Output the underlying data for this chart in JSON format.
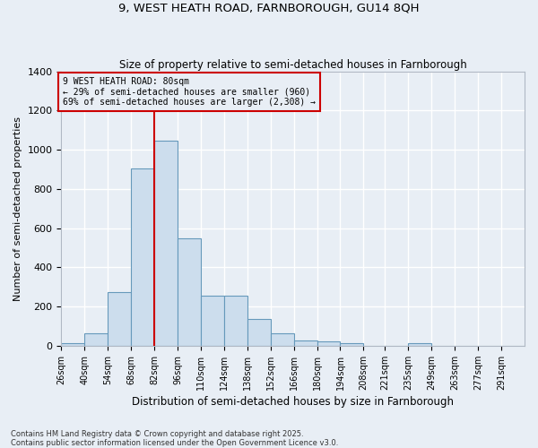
{
  "title1": "9, WEST HEATH ROAD, FARNBOROUGH, GU14 8QH",
  "title2": "Size of property relative to semi-detached houses in Farnborough",
  "xlabel": "Distribution of semi-detached houses by size in Farnborough",
  "ylabel": "Number of semi-detached properties",
  "annotation_title": "9 WEST HEATH ROAD: 80sqm",
  "annotation_line1": "← 29% of semi-detached houses are smaller (960)",
  "annotation_line2": "69% of semi-detached houses are larger (2,308) →",
  "bin_edges": [
    26,
    40,
    54,
    68,
    82,
    96,
    110,
    124,
    138,
    152,
    166,
    180,
    194,
    208,
    221,
    235,
    249,
    263,
    277,
    291,
    305
  ],
  "bar_heights": [
    15,
    65,
    275,
    905,
    1047,
    550,
    255,
    255,
    135,
    65,
    25,
    20,
    15,
    0,
    0,
    15,
    0,
    0,
    0,
    0
  ],
  "bar_color": "#ccdded",
  "bar_edge_color": "#6699bb",
  "vline_color": "#cc0000",
  "vline_x": 82,
  "annotation_box_color": "#cc0000",
  "background_color": "#e8eef5",
  "grid_color": "#d0d8e4",
  "ylim": [
    0,
    1400
  ],
  "yticks": [
    0,
    200,
    400,
    600,
    800,
    1000,
    1200,
    1400
  ],
  "footnote1": "Contains HM Land Registry data © Crown copyright and database right 2025.",
  "footnote2": "Contains public sector information licensed under the Open Government Licence v3.0."
}
